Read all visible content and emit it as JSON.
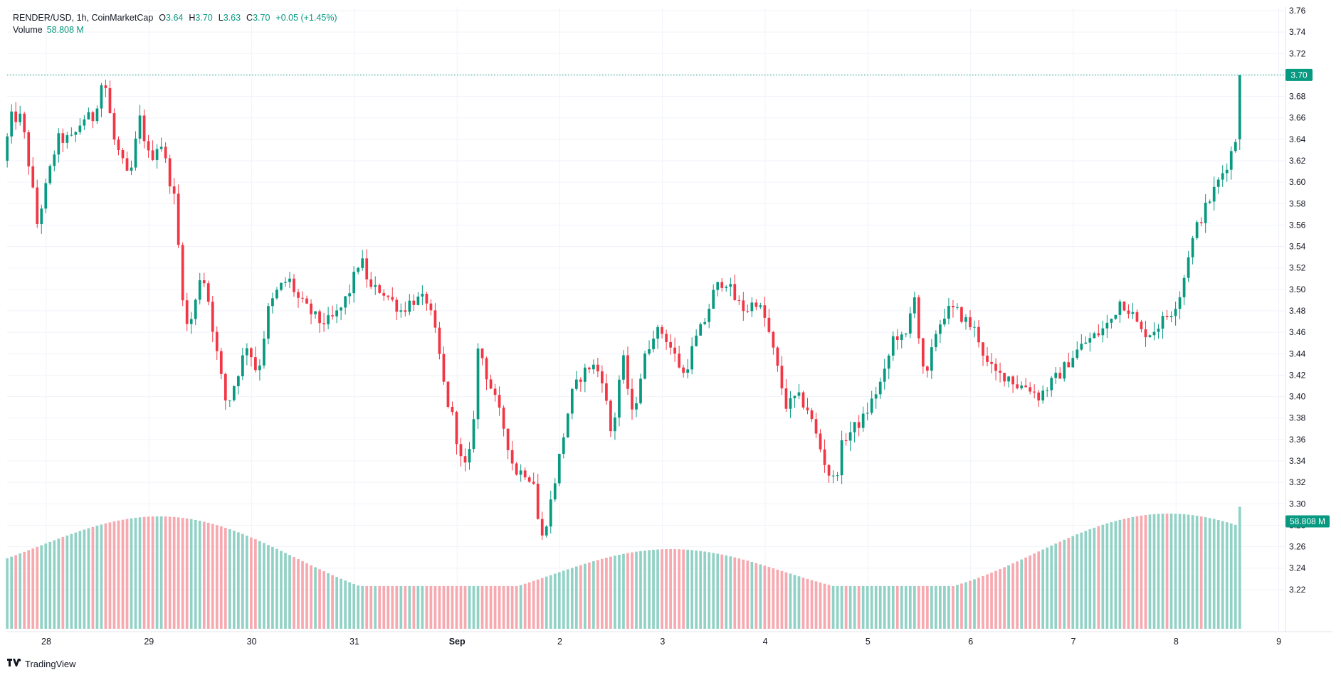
{
  "legend": {
    "symbol": "RENDER/USD, 1h, CoinMarketCap",
    "open_label": "O",
    "open": "3.64",
    "high_label": "H",
    "high": "3.70",
    "low_label": "L",
    "low": "3.63",
    "close_label": "C",
    "close": "3.70",
    "change": "+0.05 (+1.45%)",
    "volume_label": "Volume",
    "volume_value": "58.808 M"
  },
  "last_price_tag": "3.70",
  "last_volume_tag": "58.808 M",
  "brand": "TradingView",
  "colors": {
    "up": "#089981",
    "down": "#f23645",
    "up_volume": "#92d2c6",
    "down_volume": "#f7a9b0",
    "grid": "#f0f3fa",
    "axis_text": "#131722"
  },
  "chart_data": {
    "type": "candlestick",
    "symbol": "RENDER/USD",
    "interval": "1h",
    "ylim": [
      3.2,
      3.76
    ],
    "y_ticks": [
      "3.76",
      "3.74",
      "3.72",
      "3.70",
      "3.68",
      "3.66",
      "3.64",
      "3.62",
      "3.60",
      "3.58",
      "3.56",
      "3.54",
      "3.52",
      "3.50",
      "3.48",
      "3.46",
      "3.44",
      "3.42",
      "3.40",
      "3.38",
      "3.36",
      "3.34",
      "3.32",
      "3.30",
      "3.28",
      "3.26",
      "3.24",
      "3.22"
    ],
    "x_ticks": [
      {
        "label": "28",
        "day": 0
      },
      {
        "label": "29",
        "day": 1
      },
      {
        "label": "30",
        "day": 2
      },
      {
        "label": "31",
        "day": 3
      },
      {
        "label": "Sep",
        "day": 4,
        "bold": true
      },
      {
        "label": "2",
        "day": 5
      },
      {
        "label": "3",
        "day": 6
      },
      {
        "label": "4",
        "day": 7
      },
      {
        "label": "5",
        "day": 8
      },
      {
        "label": "6",
        "day": 9
      },
      {
        "label": "7",
        "day": 10
      },
      {
        "label": "8",
        "day": 11
      },
      {
        "label": "9",
        "day": 12
      }
    ],
    "price_waypoints": [
      [
        -0.38,
        3.62
      ],
      [
        -0.3,
        3.66
      ],
      [
        -0.2,
        3.66
      ],
      [
        -0.1,
        3.6
      ],
      [
        -0.05,
        3.56
      ],
      [
        0.05,
        3.6
      ],
      [
        0.15,
        3.64
      ],
      [
        0.3,
        3.64
      ],
      [
        0.4,
        3.66
      ],
      [
        0.5,
        3.66
      ],
      [
        0.6,
        3.7
      ],
      [
        0.7,
        3.64
      ],
      [
        0.85,
        3.6
      ],
      [
        0.95,
        3.66
      ],
      [
        1.05,
        3.62
      ],
      [
        1.15,
        3.64
      ],
      [
        1.3,
        3.58
      ],
      [
        1.35,
        3.51
      ],
      [
        1.42,
        3.46
      ],
      [
        1.5,
        3.49
      ],
      [
        1.55,
        3.52
      ],
      [
        1.62,
        3.49
      ],
      [
        1.72,
        3.43
      ],
      [
        1.8,
        3.39
      ],
      [
        1.9,
        3.42
      ],
      [
        2.0,
        3.45
      ],
      [
        2.1,
        3.42
      ],
      [
        2.2,
        3.48
      ],
      [
        2.3,
        3.5
      ],
      [
        2.4,
        3.51
      ],
      [
        2.5,
        3.49
      ],
      [
        2.6,
        3.48
      ],
      [
        2.7,
        3.47
      ],
      [
        2.8,
        3.47
      ],
      [
        2.9,
        3.48
      ],
      [
        3.0,
        3.5
      ],
      [
        3.1,
        3.53
      ],
      [
        3.2,
        3.5
      ],
      [
        3.3,
        3.5
      ],
      [
        3.4,
        3.49
      ],
      [
        3.5,
        3.48
      ],
      [
        3.6,
        3.49
      ],
      [
        3.75,
        3.49
      ],
      [
        3.85,
        3.45
      ],
      [
        3.93,
        3.4
      ],
      [
        4.0,
        3.38
      ],
      [
        4.1,
        3.33
      ],
      [
        4.18,
        3.35
      ],
      [
        4.25,
        3.45
      ],
      [
        4.33,
        3.42
      ],
      [
        4.4,
        3.4
      ],
      [
        4.5,
        3.37
      ],
      [
        4.6,
        3.33
      ],
      [
        4.7,
        3.33
      ],
      [
        4.8,
        3.32
      ],
      [
        4.85,
        3.26
      ],
      [
        4.95,
        3.3
      ],
      [
        5.05,
        3.35
      ],
      [
        5.15,
        3.4
      ],
      [
        5.25,
        3.42
      ],
      [
        5.35,
        3.43
      ],
      [
        5.45,
        3.42
      ],
      [
        5.55,
        3.36
      ],
      [
        5.65,
        3.44
      ],
      [
        5.75,
        3.38
      ],
      [
        5.85,
        3.43
      ],
      [
        5.95,
        3.46
      ],
      [
        6.05,
        3.46
      ],
      [
        6.15,
        3.44
      ],
      [
        6.25,
        3.42
      ],
      [
        6.35,
        3.45
      ],
      [
        6.45,
        3.47
      ],
      [
        6.55,
        3.5
      ],
      [
        6.65,
        3.51
      ],
      [
        6.75,
        3.49
      ],
      [
        6.85,
        3.48
      ],
      [
        6.95,
        3.49
      ],
      [
        7.05,
        3.47
      ],
      [
        7.15,
        3.43
      ],
      [
        7.25,
        3.39
      ],
      [
        7.35,
        3.4
      ],
      [
        7.45,
        3.39
      ],
      [
        7.55,
        3.36
      ],
      [
        7.65,
        3.33
      ],
      [
        7.72,
        3.32
      ],
      [
        7.8,
        3.36
      ],
      [
        7.9,
        3.37
      ],
      [
        8.0,
        3.38
      ],
      [
        8.1,
        3.4
      ],
      [
        8.2,
        3.42
      ],
      [
        8.3,
        3.46
      ],
      [
        8.4,
        3.45
      ],
      [
        8.5,
        3.5
      ],
      [
        8.55,
        3.44
      ],
      [
        8.6,
        3.41
      ],
      [
        8.7,
        3.46
      ],
      [
        8.8,
        3.48
      ],
      [
        8.9,
        3.48
      ],
      [
        9.0,
        3.47
      ],
      [
        9.1,
        3.46
      ],
      [
        9.2,
        3.43
      ],
      [
        9.3,
        3.42
      ],
      [
        9.4,
        3.42
      ],
      [
        9.5,
        3.41
      ],
      [
        9.6,
        3.41
      ],
      [
        9.7,
        3.4
      ],
      [
        9.8,
        3.41
      ],
      [
        9.9,
        3.42
      ],
      [
        10.05,
        3.44
      ],
      [
        10.15,
        3.45
      ],
      [
        10.3,
        3.46
      ],
      [
        10.4,
        3.47
      ],
      [
        10.5,
        3.49
      ],
      [
        10.6,
        3.48
      ],
      [
        10.7,
        3.46
      ],
      [
        10.8,
        3.46
      ],
      [
        10.9,
        3.47
      ],
      [
        11.0,
        3.48
      ],
      [
        11.1,
        3.5
      ],
      [
        11.15,
        3.53
      ],
      [
        11.25,
        3.56
      ],
      [
        11.35,
        3.58
      ],
      [
        11.45,
        3.6
      ],
      [
        11.55,
        3.62
      ],
      [
        11.62,
        3.64
      ],
      [
        11.65,
        3.7
      ]
    ],
    "volume": {
      "label": "Volume",
      "last": "58.808 M",
      "level_range": [
        0.35,
        1.0
      ]
    }
  }
}
